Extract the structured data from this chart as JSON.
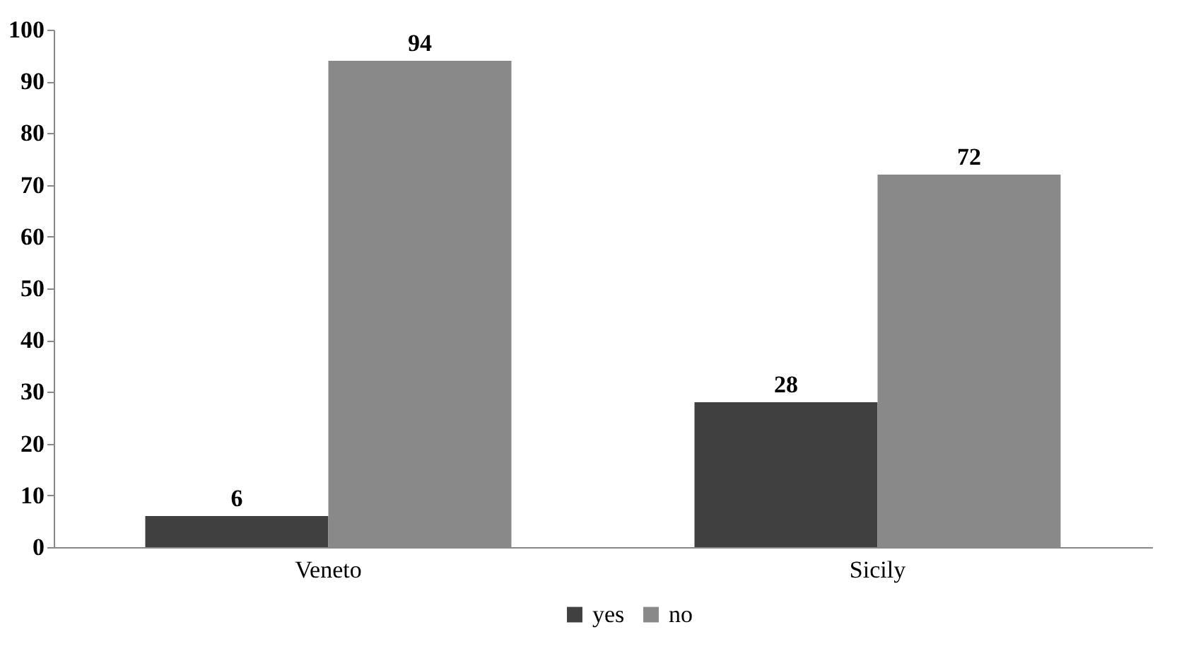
{
  "chart_data": {
    "type": "bar",
    "categories": [
      "Veneto",
      "Sicily"
    ],
    "series": [
      {
        "name": "yes",
        "color": "#404040",
        "values": [
          6,
          28
        ]
      },
      {
        "name": "no",
        "color": "#898989",
        "values": [
          94,
          72
        ]
      }
    ],
    "ylim": [
      0,
      100
    ],
    "yticks": [
      0,
      10,
      20,
      30,
      40,
      50,
      60,
      70,
      80,
      90,
      100
    ],
    "data_labels": true,
    "grid": false,
    "legend": "bottom"
  }
}
